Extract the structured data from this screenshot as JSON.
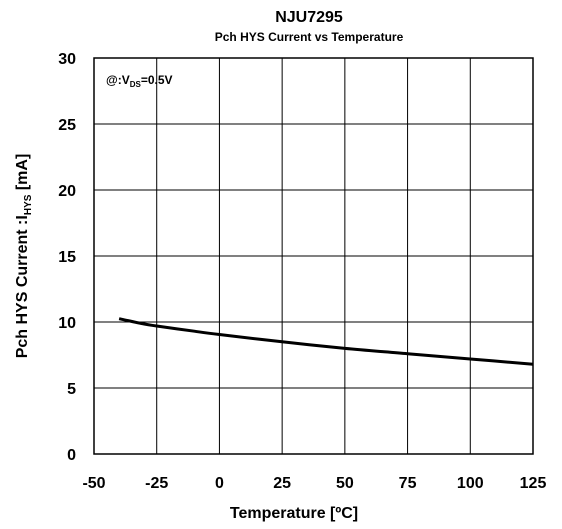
{
  "chart_data": {
    "type": "line",
    "title": "NJU7295",
    "subtitle": "Pch HYS Current vs Temperature",
    "xlabel": "Temperature  [ºC]",
    "ylabel": {
      "main": "Pch HYS Current  :I",
      "sub": "HYS",
      "unit": " [mA]"
    },
    "annotation": {
      "prefix": "@:V",
      "sub": "DS",
      "suffix": "=0.5V"
    },
    "xlim": [
      -50,
      125
    ],
    "ylim": [
      0,
      30
    ],
    "xticks": [
      -50,
      -25,
      0,
      25,
      50,
      75,
      100,
      125
    ],
    "yticks": [
      0,
      5,
      10,
      15,
      20,
      25,
      30
    ],
    "grid": true,
    "series": [
      {
        "color": "#000000",
        "x": [
          -40,
          -30,
          -25,
          -10,
          0,
          25,
          50,
          75,
          100,
          125
        ],
        "y": [
          10.25,
          9.85,
          9.7,
          9.3,
          9.05,
          8.5,
          8.0,
          7.6,
          7.2,
          6.8
        ]
      }
    ]
  }
}
